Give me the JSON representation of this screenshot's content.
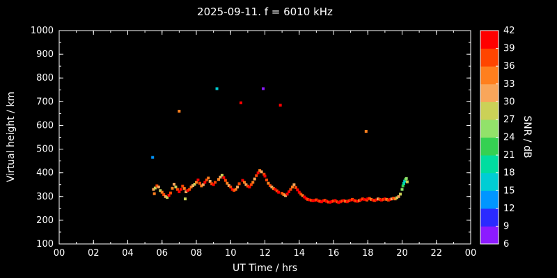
{
  "title": "2025-09-11. f = 6010 kHz",
  "axes": {
    "xlabel": "UT Time / hrs",
    "ylabel": "Virtual height / km",
    "xlim": [
      0,
      24
    ],
    "ylim": [
      100,
      1000
    ],
    "x_tick_values": [
      0,
      2,
      4,
      6,
      8,
      10,
      12,
      14,
      16,
      18,
      20,
      22,
      24
    ],
    "x_tick_labels": [
      "00",
      "02",
      "04",
      "06",
      "08",
      "10",
      "12",
      "14",
      "16",
      "18",
      "20",
      "22",
      "00"
    ],
    "x_minor_step": 1,
    "y_tick_values": [
      100,
      200,
      300,
      400,
      500,
      600,
      700,
      800,
      900,
      1000
    ],
    "y_tick_labels": [
      "100",
      "200",
      "300",
      "400",
      "500",
      "600",
      "700",
      "800",
      "900",
      "1000"
    ],
    "y_minor_step": 50
  },
  "colorbar": {
    "label": "SNR / dB",
    "min": 6,
    "max": 42,
    "tick_values": [
      6,
      9,
      12,
      15,
      18,
      21,
      24,
      27,
      30,
      33,
      36,
      39,
      42
    ],
    "colors_low_to_high": [
      "#8c1aff",
      "#2a2aff",
      "#0096ff",
      "#00cdd4",
      "#00dda0",
      "#35d152",
      "#92e26a",
      "#cbd157",
      "#f9a65a",
      "#ff7f1e",
      "#ff4500",
      "#ff0000"
    ]
  },
  "chart_data": {
    "type": "scatter",
    "title": "2025-09-11. f = 6010 kHz",
    "xlabel": "UT Time / hrs",
    "ylabel": "Virtual height / km",
    "zlabel": "SNR / dB",
    "xlim": [
      0,
      24
    ],
    "ylim": [
      100,
      1000
    ],
    "zlim": [
      6,
      42
    ],
    "point_format": [
      "ut_hours",
      "virtual_height_km",
      "snr_db"
    ],
    "points": [
      [
        5.45,
        465,
        13
      ],
      [
        5.5,
        330,
        31
      ],
      [
        5.55,
        312,
        34
      ],
      [
        5.6,
        336,
        28
      ],
      [
        5.7,
        345,
        37
      ],
      [
        5.8,
        340,
        31
      ],
      [
        5.9,
        325,
        28
      ],
      [
        6.0,
        318,
        34
      ],
      [
        6.1,
        308,
        37
      ],
      [
        6.2,
        300,
        31
      ],
      [
        6.3,
        296,
        28
      ],
      [
        6.4,
        305,
        40
      ],
      [
        6.5,
        315,
        37
      ],
      [
        6.6,
        335,
        34
      ],
      [
        6.7,
        352,
        31
      ],
      [
        6.8,
        340,
        28
      ],
      [
        6.9,
        330,
        37
      ],
      [
        7.0,
        660,
        34
      ],
      [
        7.0,
        320,
        40
      ],
      [
        7.1,
        330,
        40
      ],
      [
        7.2,
        344,
        37
      ],
      [
        7.3,
        334,
        34
      ],
      [
        7.35,
        290,
        28
      ],
      [
        7.4,
        320,
        31
      ],
      [
        7.5,
        326,
        40
      ],
      [
        7.6,
        330,
        37
      ],
      [
        7.7,
        340,
        34
      ],
      [
        7.8,
        346,
        31
      ],
      [
        7.9,
        352,
        28
      ],
      [
        8.0,
        360,
        34
      ],
      [
        8.1,
        370,
        40
      ],
      [
        8.2,
        356,
        37
      ],
      [
        8.3,
        345,
        34
      ],
      [
        8.4,
        350,
        31
      ],
      [
        8.5,
        360,
        40
      ],
      [
        8.6,
        370,
        37
      ],
      [
        8.7,
        378,
        34
      ],
      [
        8.8,
        364,
        31
      ],
      [
        8.9,
        354,
        37
      ],
      [
        9.0,
        350,
        40
      ],
      [
        9.1,
        360,
        37
      ],
      [
        9.2,
        755,
        17
      ],
      [
        9.3,
        372,
        34
      ],
      [
        9.4,
        382,
        31
      ],
      [
        9.5,
        390,
        28
      ],
      [
        9.6,
        380,
        40
      ],
      [
        9.7,
        368,
        37
      ],
      [
        9.8,
        356,
        34
      ],
      [
        9.9,
        346,
        31
      ],
      [
        10.0,
        340,
        37
      ],
      [
        10.1,
        330,
        40
      ],
      [
        10.2,
        326,
        37
      ],
      [
        10.3,
        330,
        34
      ],
      [
        10.4,
        340,
        31
      ],
      [
        10.5,
        354,
        37
      ],
      [
        10.6,
        695,
        40
      ],
      [
        10.7,
        368,
        40
      ],
      [
        10.8,
        360,
        34
      ],
      [
        10.9,
        350,
        31
      ],
      [
        11.0,
        344,
        37
      ],
      [
        11.1,
        340,
        40
      ],
      [
        11.2,
        350,
        37
      ],
      [
        11.3,
        360,
        34
      ],
      [
        11.4,
        374,
        31
      ],
      [
        11.5,
        388,
        37
      ],
      [
        11.6,
        400,
        40
      ],
      [
        11.7,
        410,
        34
      ],
      [
        11.8,
        404,
        31
      ],
      [
        11.9,
        755,
        8
      ],
      [
        11.95,
        394,
        37
      ],
      [
        12.0,
        386,
        40
      ],
      [
        12.1,
        370,
        37
      ],
      [
        12.2,
        356,
        34
      ],
      [
        12.3,
        346,
        37
      ],
      [
        12.4,
        340,
        31
      ],
      [
        12.5,
        334,
        34
      ],
      [
        12.6,
        330,
        40
      ],
      [
        12.7,
        324,
        37
      ],
      [
        12.8,
        318,
        40
      ],
      [
        12.9,
        685,
        40
      ],
      [
        13.0,
        314,
        37
      ],
      [
        13.1,
        308,
        34
      ],
      [
        13.2,
        304,
        31
      ],
      [
        13.3,
        310,
        40
      ],
      [
        13.4,
        320,
        40
      ],
      [
        13.5,
        330,
        37
      ],
      [
        13.6,
        340,
        34
      ],
      [
        13.7,
        350,
        31
      ],
      [
        13.8,
        338,
        37
      ],
      [
        13.9,
        328,
        40
      ],
      [
        14.0,
        318,
        40
      ],
      [
        14.1,
        310,
        37
      ],
      [
        14.2,
        304,
        34
      ],
      [
        14.3,
        298,
        40
      ],
      [
        14.4,
        292,
        40
      ],
      [
        14.5,
        288,
        37
      ],
      [
        14.6,
        286,
        40
      ],
      [
        14.7,
        284,
        37
      ],
      [
        14.8,
        282,
        40
      ],
      [
        14.9,
        284,
        40
      ],
      [
        15.0,
        286,
        37
      ],
      [
        15.1,
        282,
        40
      ],
      [
        15.2,
        280,
        37
      ],
      [
        15.3,
        278,
        40
      ],
      [
        15.4,
        282,
        40
      ],
      [
        15.5,
        284,
        37
      ],
      [
        15.6,
        280,
        40
      ],
      [
        15.7,
        277,
        37
      ],
      [
        15.8,
        276,
        40
      ],
      [
        15.9,
        279,
        40
      ],
      [
        16.0,
        281,
        37
      ],
      [
        16.1,
        283,
        40
      ],
      [
        16.2,
        278,
        37
      ],
      [
        16.3,
        275,
        40
      ],
      [
        16.4,
        278,
        40
      ],
      [
        16.5,
        281,
        37
      ],
      [
        16.6,
        283,
        40
      ],
      [
        16.7,
        280,
        34
      ],
      [
        16.8,
        278,
        40
      ],
      [
        16.9,
        282,
        37
      ],
      [
        17.0,
        285,
        40
      ],
      [
        17.1,
        288,
        37
      ],
      [
        17.2,
        284,
        40
      ],
      [
        17.3,
        281,
        37
      ],
      [
        17.4,
        280,
        40
      ],
      [
        17.5,
        283,
        34
      ],
      [
        17.6,
        286,
        40
      ],
      [
        17.7,
        290,
        37
      ],
      [
        17.8,
        288,
        40
      ],
      [
        17.9,
        575,
        34
      ],
      [
        17.95,
        285,
        37
      ],
      [
        18.0,
        290,
        40
      ],
      [
        18.1,
        292,
        37
      ],
      [
        18.2,
        288,
        34
      ],
      [
        18.3,
        285,
        40
      ],
      [
        18.4,
        283,
        37
      ],
      [
        18.5,
        286,
        40
      ],
      [
        18.6,
        290,
        31
      ],
      [
        18.7,
        288,
        37
      ],
      [
        18.8,
        285,
        40
      ],
      [
        18.9,
        288,
        37
      ],
      [
        19.0,
        290,
        40
      ],
      [
        19.1,
        288,
        34
      ],
      [
        19.2,
        285,
        37
      ],
      [
        19.3,
        288,
        40
      ],
      [
        19.4,
        290,
        31
      ],
      [
        19.5,
        293,
        37
      ],
      [
        19.6,
        290,
        34
      ],
      [
        19.7,
        295,
        28
      ],
      [
        19.8,
        300,
        31
      ],
      [
        19.9,
        310,
        28
      ],
      [
        20.0,
        330,
        25
      ],
      [
        20.05,
        345,
        22
      ],
      [
        20.1,
        355,
        19
      ],
      [
        20.15,
        365,
        16
      ],
      [
        20.2,
        372,
        22
      ],
      [
        20.25,
        376,
        25
      ],
      [
        20.3,
        362,
        28
      ]
    ]
  }
}
